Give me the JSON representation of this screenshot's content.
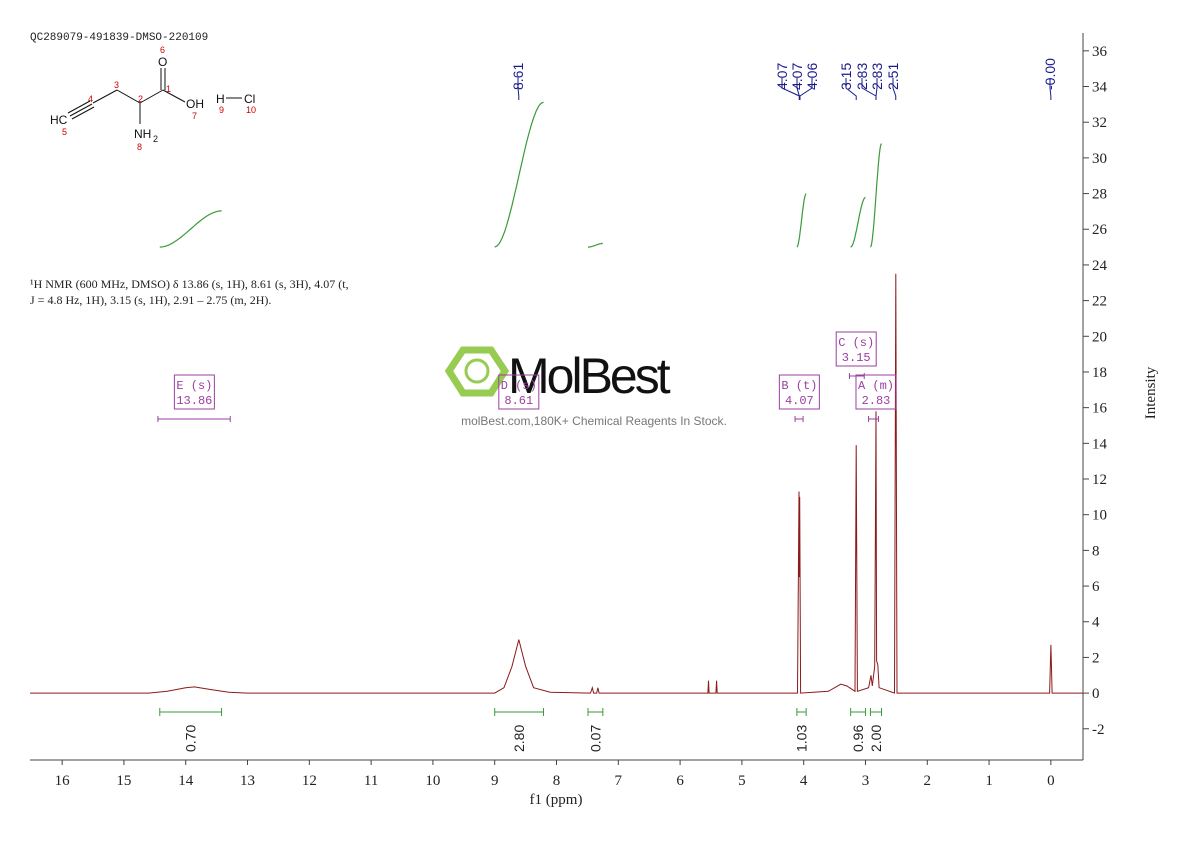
{
  "chart_data": {
    "type": "nmr",
    "title": "QC289079-491839-DMSO-220109",
    "description": [
      "¹H NMR (600 MHz, DMSO) δ 13.86 (s, 1H), 8.61 (s, 3H), 4.07 (t,",
      "J = 4.8 Hz, 1H), 3.15 (s, 1H), 2.91 – 2.75 (m, 2H)."
    ],
    "x_label": "f1 (ppm)",
    "y_label": "Intensity",
    "xlim": [
      16.52,
      -0.52
    ],
    "ylim": [
      -3.75,
      37
    ],
    "xticks": [
      16,
      15,
      14,
      13,
      12,
      11,
      10,
      9,
      8,
      7,
      6,
      5,
      4,
      3,
      2,
      1,
      0
    ],
    "yticks": [
      -2,
      0,
      2,
      4,
      6,
      8,
      10,
      12,
      14,
      16,
      18,
      20,
      22,
      24,
      26,
      28,
      30,
      32,
      34,
      36
    ],
    "color": "#8b1a1a",
    "x": [
      16.52,
      14.6,
      14.3,
      14.0,
      13.86,
      13.6,
      13.3,
      13.0,
      9.0,
      8.85,
      8.72,
      8.61,
      8.5,
      8.37,
      8.1,
      7.45,
      7.42,
      7.4,
      7.35,
      7.33,
      7.31,
      5.55,
      5.54,
      5.53,
      5.42,
      5.41,
      5.4,
      4.1,
      4.075,
      4.07,
      4.065,
      4.05,
      3.6,
      3.4,
      3.3,
      3.17,
      3.15,
      3.13,
      2.95,
      2.91,
      2.89,
      2.85,
      2.83,
      2.82,
      2.8,
      2.78,
      2.53,
      2.51,
      2.49,
      2.2,
      0.02,
      0.0,
      -0.02,
      -0.52
    ],
    "values": [
      0,
      0,
      0.1,
      0.3,
      0.35,
      0.2,
      0.05,
      0,
      0,
      0.3,
      1.5,
      3.0,
      1.5,
      0.3,
      0.05,
      0,
      0.3,
      0,
      0,
      0.3,
      0,
      0,
      0.7,
      0,
      0,
      0.7,
      0,
      0,
      11.3,
      6.5,
      11,
      0,
      0.1,
      0.5,
      0.4,
      0.1,
      13.9,
      0.1,
      0.3,
      1.0,
      0.4,
      1.5,
      15.8,
      1.8,
      1.6,
      0.3,
      0,
      23.5,
      0,
      0,
      0,
      2.7,
      0,
      0
    ],
    "peaks": {
      "values": [
        8.61,
        4.07,
        4.07,
        4.06,
        3.15,
        2.83,
        2.83,
        2.51,
        0
      ],
      "value_labels": [
        "8.61",
        "4.07",
        "4.07",
        "4.06",
        "3.15",
        "2.83",
        "2.83",
        "2.51",
        "-0.00"
      ],
      "color": "#1a1a8b"
    },
    "integrals": {
      "ranges": [
        [
          14.42,
          13.42
        ],
        [
          9.0,
          8.21
        ],
        [
          7.49,
          7.25
        ],
        [
          4.11,
          3.96
        ],
        [
          3.24,
          3.0
        ],
        [
          2.92,
          2.74
        ]
      ],
      "values": [
        0.7,
        2.8,
        0.07,
        1.03,
        0.96,
        2
      ],
      "value_labels": [
        "0.70",
        "2.80",
        "0.07",
        "1.03",
        "0.96",
        "2.00"
      ],
      "color": "#3a9a3a"
    },
    "multiplets": [
      {
        "label": "E (s)",
        "shift": 13.86,
        "range": [
          14.45,
          13.28
        ]
      },
      {
        "label": "D (s)",
        "shift": 8.61
      },
      {
        "label": "B (t)",
        "shift": 4.07,
        "range": [
          4.14,
          4.01
        ]
      },
      {
        "label": "C (s)",
        "shift": 3.15,
        "range": [
          3.26,
          3.02
        ]
      },
      {
        "label": "A (m)",
        "shift": 2.83,
        "range": [
          2.95,
          2.79
        ]
      }
    ],
    "multiplet_color": "#9b3fa0"
  },
  "structure": {
    "atoms": [
      "HC",
      "5",
      "4",
      "3",
      "2",
      "1",
      "6",
      "O",
      "OH",
      "7",
      "NH",
      "2",
      "8",
      "H",
      "9",
      "Cl",
      "10"
    ]
  },
  "watermark": {
    "brand": "MolBest",
    "tagline": "molBest.com,180K+ Chemical Reagents In Stock."
  }
}
